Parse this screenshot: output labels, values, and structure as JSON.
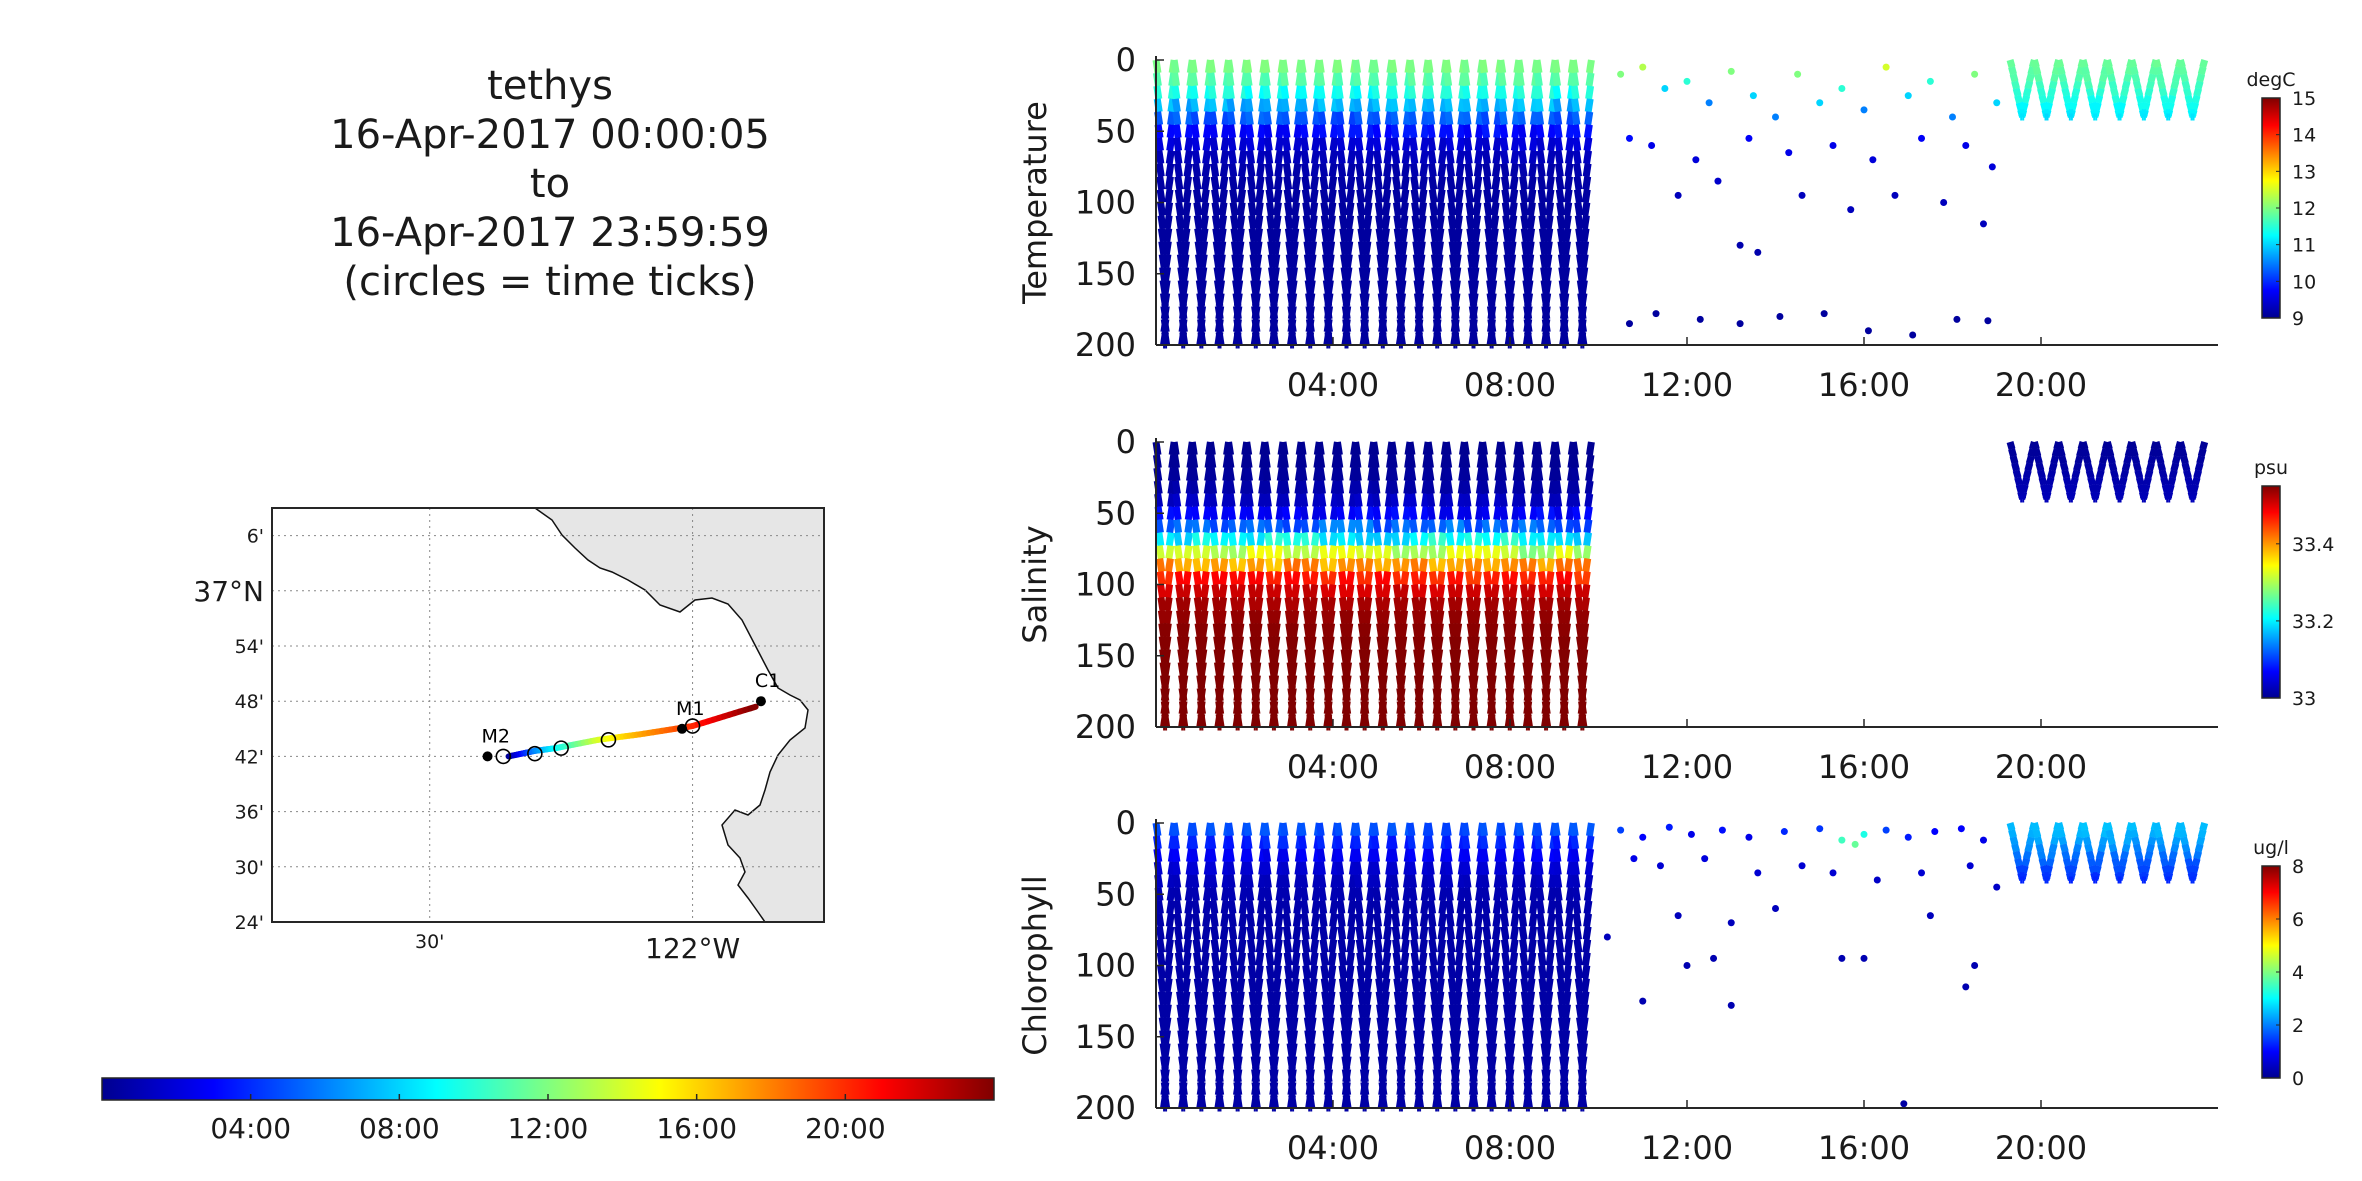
{
  "title_lines": [
    "tethys",
    "16-Apr-2017 00:00:05",
    "to",
    "16-Apr-2017 23:59:59",
    "(circles = time ticks)"
  ],
  "colors": {
    "jet": [
      "#00008f",
      "#0000ff",
      "#0080ff",
      "#00ffff",
      "#80ff80",
      "#ffff00",
      "#ff8000",
      "#ff0000",
      "#800000"
    ],
    "land": "#e6e6e6",
    "grid": "#888888",
    "axis": "#262626"
  },
  "map": {
    "lat_ticks": [
      "6'",
      "37°N",
      "54'",
      "48'",
      "42'",
      "36'",
      "30'",
      "24'"
    ],
    "lat_values": [
      37.1,
      37.0,
      36.9,
      36.8,
      36.7,
      36.6,
      36.5,
      36.4
    ],
    "lon_ticks": [
      "30'",
      "122°W"
    ],
    "lon_values": [
      -122.5,
      -122.0
    ],
    "lon_range": [
      -122.8,
      -121.75
    ],
    "lat_range": [
      36.4,
      37.15
    ],
    "stations": [
      {
        "name": "M2",
        "lon": -122.39,
        "lat": 36.7
      },
      {
        "name": "M1",
        "lon": -122.02,
        "lat": 36.75
      },
      {
        "name": "C1",
        "lon": -121.87,
        "lat": 36.8
      }
    ],
    "track": [
      {
        "lon": -122.35,
        "lat": 36.7,
        "hour": 0
      },
      {
        "lon": -122.3,
        "lat": 36.71,
        "hour": 6
      },
      {
        "lon": -122.26,
        "lat": 36.715,
        "hour": 9
      },
      {
        "lon": -122.18,
        "lat": 36.73,
        "hour": 14
      },
      {
        "lon": -122.1,
        "lat": 36.74,
        "hour": 17
      },
      {
        "lon": -122.0,
        "lat": 36.755,
        "hour": 20
      },
      {
        "lon": -121.88,
        "lat": 36.79,
        "hour": 24
      }
    ],
    "time_circles": [
      {
        "lon": -122.36,
        "lat": 36.7
      },
      {
        "lon": -122.3,
        "lat": 36.705
      },
      {
        "lon": -122.25,
        "lat": 36.715
      },
      {
        "lon": -122.16,
        "lat": 36.73
      },
      {
        "lon": -122.0,
        "lat": 36.755
      }
    ]
  },
  "time_colorbar": {
    "ticks": [
      "04:00",
      "08:00",
      "12:00",
      "16:00",
      "20:00"
    ],
    "tick_hours": [
      4,
      8,
      12,
      16,
      20
    ],
    "range": [
      0,
      24
    ]
  },
  "chart_data": [
    {
      "type": "scatter",
      "ylabel": "Temperature",
      "xlim": [
        0,
        24
      ],
      "ylim": [
        200,
        0
      ],
      "x_ticks": [
        "04:00",
        "08:00",
        "12:00",
        "16:00",
        "20:00"
      ],
      "x_tick_hours": [
        4,
        8,
        12,
        16,
        20
      ],
      "y_ticks": [
        "0",
        "50",
        "100",
        "150",
        "200"
      ],
      "y_tick_values": [
        0,
        50,
        100,
        150,
        200
      ],
      "colorbar": {
        "unit": "degC",
        "range": [
          9,
          15
        ],
        "ticks": [
          "15",
          "14",
          "13",
          "12",
          "11",
          "10",
          "9"
        ],
        "tick_values": [
          15,
          14,
          13,
          12,
          11,
          10,
          9
        ]
      },
      "profiles": [
        {
          "t_start": 0.0,
          "t_end": 10.1,
          "max_depth": 200,
          "surface": 12.2,
          "bottom": 9.1,
          "thermocline": 30
        },
        {
          "t_start": 19.3,
          "t_end": 24,
          "max_depth": 40,
          "surface": 12.0,
          "bottom": 10.8,
          "thermocline": 25
        }
      ],
      "sparse_points": [
        {
          "t": 10.5,
          "d": 10,
          "v": 12
        },
        {
          "t": 11.0,
          "d": 5,
          "v": 12.3
        },
        {
          "t": 11.5,
          "d": 20,
          "v": 11
        },
        {
          "t": 12.0,
          "d": 15,
          "v": 11.5
        },
        {
          "t": 12.5,
          "d": 30,
          "v": 10.5
        },
        {
          "t": 13.0,
          "d": 8,
          "v": 12
        },
        {
          "t": 13.5,
          "d": 25,
          "v": 11
        },
        {
          "t": 14.0,
          "d": 40,
          "v": 10.5
        },
        {
          "t": 14.5,
          "d": 10,
          "v": 12
        },
        {
          "t": 15.0,
          "d": 30,
          "v": 11
        },
        {
          "t": 15.5,
          "d": 20,
          "v": 11.5
        },
        {
          "t": 16.0,
          "d": 35,
          "v": 10.5
        },
        {
          "t": 16.5,
          "d": 5,
          "v": 12.5
        },
        {
          "t": 17.0,
          "d": 25,
          "v": 11
        },
        {
          "t": 17.5,
          "d": 15,
          "v": 11.5
        },
        {
          "t": 18.0,
          "d": 40,
          "v": 10.5
        },
        {
          "t": 18.5,
          "d": 10,
          "v": 12
        },
        {
          "t": 19.0,
          "d": 30,
          "v": 11
        },
        {
          "t": 10.7,
          "d": 55,
          "v": 9.8
        },
        {
          "t": 11.2,
          "d": 60,
          "v": 9.6
        },
        {
          "t": 12.2,
          "d": 70,
          "v": 9.5
        },
        {
          "t": 13.4,
          "d": 55,
          "v": 9.7
        },
        {
          "t": 14.3,
          "d": 65,
          "v": 9.6
        },
        {
          "t": 15.3,
          "d": 60,
          "v": 9.6
        },
        {
          "t": 16.2,
          "d": 70,
          "v": 9.5
        },
        {
          "t": 17.3,
          "d": 55,
          "v": 9.7
        },
        {
          "t": 18.3,
          "d": 60,
          "v": 9.6
        },
        {
          "t": 18.9,
          "d": 75,
          "v": 9.5
        },
        {
          "t": 11.8,
          "d": 95,
          "v": 9.3
        },
        {
          "t": 12.7,
          "d": 85,
          "v": 9.4
        },
        {
          "t": 13.2,
          "d": 130,
          "v": 9.2
        },
        {
          "t": 13.6,
          "d": 135,
          "v": 9.2
        },
        {
          "t": 14.6,
          "d": 95,
          "v": 9.3
        },
        {
          "t": 15.7,
          "d": 105,
          "v": 9.3
        },
        {
          "t": 16.7,
          "d": 95,
          "v": 9.3
        },
        {
          "t": 17.8,
          "d": 100,
          "v": 9.3
        },
        {
          "t": 18.7,
          "d": 115,
          "v": 9.3
        },
        {
          "t": 10.7,
          "d": 185,
          "v": 9.1
        },
        {
          "t": 11.3,
          "d": 178,
          "v": 9.1
        },
        {
          "t": 12.3,
          "d": 182,
          "v": 9.1
        },
        {
          "t": 13.2,
          "d": 185,
          "v": 9.1
        },
        {
          "t": 14.1,
          "d": 180,
          "v": 9.1
        },
        {
          "t": 15.1,
          "d": 178,
          "v": 9.1
        },
        {
          "t": 16.1,
          "d": 190,
          "v": 9.1
        },
        {
          "t": 17.1,
          "d": 193,
          "v": 9.1
        },
        {
          "t": 18.1,
          "d": 182,
          "v": 9.1
        },
        {
          "t": 18.8,
          "d": 183,
          "v": 9.1
        }
      ]
    },
    {
      "type": "scatter",
      "ylabel": "Salinity",
      "xlim": [
        0,
        24
      ],
      "ylim": [
        200,
        0
      ],
      "x_ticks": [
        "04:00",
        "08:00",
        "12:00",
        "16:00",
        "20:00"
      ],
      "x_tick_hours": [
        4,
        8,
        12,
        16,
        20
      ],
      "y_ticks": [
        "0",
        "50",
        "100",
        "150",
        "200"
      ],
      "y_tick_values": [
        0,
        50,
        100,
        150,
        200
      ],
      "colorbar": {
        "unit": "psu",
        "range": [
          33.0,
          33.55
        ],
        "ticks": [
          "33.4",
          "33.2",
          "33"
        ],
        "tick_values": [
          33.4,
          33.2,
          33.0
        ]
      },
      "profiles": [
        {
          "t_start": 0.0,
          "t_end": 10.1,
          "max_depth": 200,
          "surface": 33.0,
          "bottom": 33.55,
          "thermocline": 70
        },
        {
          "t_start": 19.3,
          "t_end": 24,
          "max_depth": 40,
          "surface": 33.0,
          "bottom": 33.03,
          "thermocline": 20
        }
      ],
      "sparse_points": []
    },
    {
      "type": "scatter",
      "ylabel": "Chlorophyll",
      "xlim": [
        0,
        24
      ],
      "ylim": [
        200,
        0
      ],
      "x_ticks": [
        "04:00",
        "08:00",
        "12:00",
        "16:00",
        "20:00"
      ],
      "x_tick_hours": [
        4,
        8,
        12,
        16,
        20
      ],
      "y_ticks": [
        "0",
        "50",
        "100",
        "150",
        "200"
      ],
      "y_tick_values": [
        0,
        50,
        100,
        150,
        200
      ],
      "colorbar": {
        "unit": "ug/l",
        "range": [
          0,
          8
        ],
        "ticks": [
          "8",
          "6",
          "4",
          "2",
          "0"
        ],
        "tick_values": [
          8,
          6,
          4,
          2,
          0
        ]
      },
      "profiles": [
        {
          "t_start": 0.0,
          "t_end": 10.1,
          "max_depth": 200,
          "surface": 2.2,
          "bottom": 0.2,
          "thermocline": 10
        },
        {
          "t_start": 19.3,
          "t_end": 24,
          "max_depth": 40,
          "surface": 2.8,
          "bottom": 1.0,
          "thermocline": 20
        }
      ],
      "sparse_points": [
        {
          "t": 10.5,
          "d": 5,
          "v": 1.5
        },
        {
          "t": 11.0,
          "d": 10,
          "v": 1.0
        },
        {
          "t": 11.6,
          "d": 3,
          "v": 1.2
        },
        {
          "t": 12.1,
          "d": 8,
          "v": 0.8
        },
        {
          "t": 12.8,
          "d": 5,
          "v": 1.1
        },
        {
          "t": 13.4,
          "d": 10,
          "v": 0.8
        },
        {
          "t": 14.2,
          "d": 6,
          "v": 1.3
        },
        {
          "t": 15.0,
          "d": 4,
          "v": 1.4
        },
        {
          "t": 15.5,
          "d": 12,
          "v": 3.5
        },
        {
          "t": 15.8,
          "d": 15,
          "v": 3.8
        },
        {
          "t": 16.0,
          "d": 8,
          "v": 3.2
        },
        {
          "t": 16.5,
          "d": 5,
          "v": 1.5
        },
        {
          "t": 17.0,
          "d": 10,
          "v": 1.2
        },
        {
          "t": 17.6,
          "d": 6,
          "v": 1.0
        },
        {
          "t": 18.2,
          "d": 4,
          "v": 1.0
        },
        {
          "t": 18.7,
          "d": 12,
          "v": 0.8
        },
        {
          "t": 10.8,
          "d": 25,
          "v": 0.8
        },
        {
          "t": 11.4,
          "d": 30,
          "v": 0.6
        },
        {
          "t": 12.4,
          "d": 25,
          "v": 0.7
        },
        {
          "t": 13.6,
          "d": 35,
          "v": 0.6
        },
        {
          "t": 14.6,
          "d": 30,
          "v": 0.6
        },
        {
          "t": 15.3,
          "d": 35,
          "v": 0.6
        },
        {
          "t": 16.3,
          "d": 40,
          "v": 0.5
        },
        {
          "t": 17.3,
          "d": 35,
          "v": 0.6
        },
        {
          "t": 18.4,
          "d": 30,
          "v": 0.6
        },
        {
          "t": 19.0,
          "d": 45,
          "v": 0.5
        },
        {
          "t": 11.8,
          "d": 65,
          "v": 0.4
        },
        {
          "t": 13.0,
          "d": 70,
          "v": 0.4
        },
        {
          "t": 14.0,
          "d": 60,
          "v": 0.4
        },
        {
          "t": 15.5,
          "d": 95,
          "v": 0.3
        },
        {
          "t": 16.0,
          "d": 95,
          "v": 0.3
        },
        {
          "t": 17.5,
          "d": 65,
          "v": 0.4
        },
        {
          "t": 18.3,
          "d": 115,
          "v": 0.3
        },
        {
          "t": 18.5,
          "d": 100,
          "v": 0.3
        },
        {
          "t": 11.0,
          "d": 125,
          "v": 0.3
        },
        {
          "t": 12.0,
          "d": 100,
          "v": 0.3
        },
        {
          "t": 12.6,
          "d": 95,
          "v": 0.3
        },
        {
          "t": 10.2,
          "d": 80,
          "v": 0.4
        },
        {
          "t": 16.9,
          "d": 197,
          "v": 0.2
        },
        {
          "t": 13.0,
          "d": 128,
          "v": 0.3
        }
      ]
    }
  ]
}
